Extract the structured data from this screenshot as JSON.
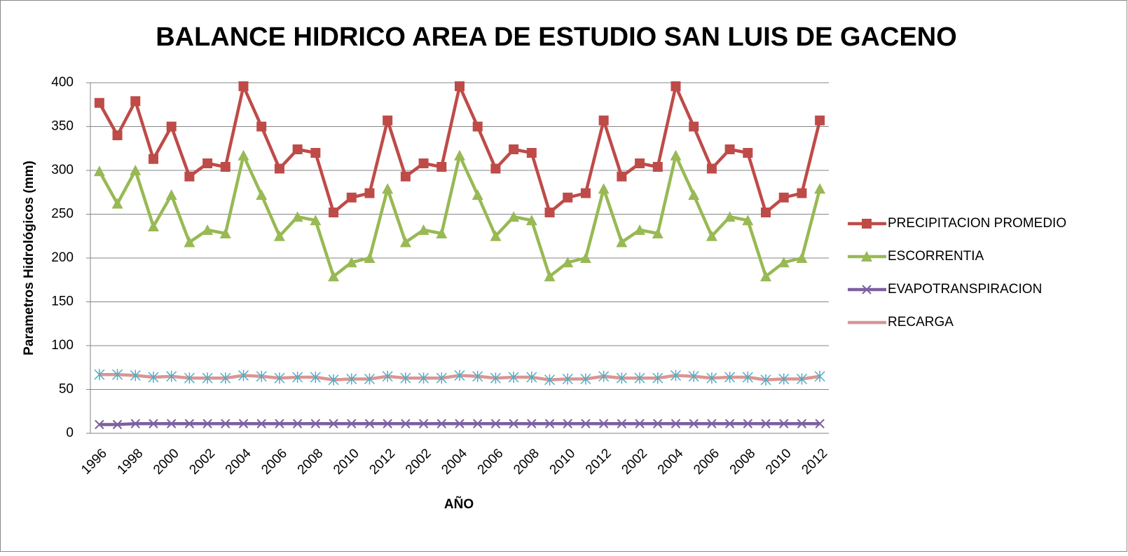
{
  "chart_data": {
    "type": "line",
    "title": "BALANCE HIDRICO AREA DE ESTUDIO SAN LUIS DE GACENO",
    "x_label": "AÑO",
    "y_label": "Parametros Hidrológicos (mm)",
    "categories": [
      "1996",
      null,
      "1998",
      null,
      "2000",
      null,
      "2002",
      null,
      "2004",
      null,
      "2006",
      null,
      "2008",
      null,
      "2010",
      null,
      "2012",
      null,
      "2002",
      null,
      "2004",
      null,
      "2006",
      null,
      "2008",
      null,
      "2010",
      null,
      "2012",
      null,
      "2002",
      null,
      "2004",
      null,
      "2006",
      null,
      "2008",
      null,
      "2010",
      null,
      "2012"
    ],
    "series": [
      {
        "name": "PRECIPITACION PROMEDIO",
        "color": "#be4b48",
        "marker": "square",
        "values": [
          377,
          340,
          379,
          313,
          350,
          293,
          308,
          304,
          396,
          350,
          302,
          324,
          320,
          252,
          269,
          274,
          357,
          293,
          308,
          304,
          396,
          350,
          302,
          324,
          320,
          252,
          269,
          274,
          357,
          293,
          308,
          304,
          396,
          350,
          302,
          324,
          320,
          252,
          269,
          274,
          357
        ]
      },
      {
        "name": "ESCORRENTIA",
        "color": "#98b954",
        "marker": "triangle",
        "values": [
          299,
          262,
          300,
          236,
          272,
          218,
          232,
          228,
          317,
          272,
          225,
          247,
          243,
          179,
          195,
          200,
          279,
          218,
          232,
          228,
          317,
          272,
          225,
          247,
          243,
          179,
          195,
          200,
          279,
          218,
          232,
          228,
          317,
          272,
          225,
          247,
          243,
          179,
          195,
          200,
          279
        ]
      },
      {
        "name": "EVAPOTRANSPIRACION",
        "color": "#7d60a0",
        "marker": "x",
        "values": [
          10,
          10,
          11,
          11,
          11,
          11,
          11,
          11,
          11,
          11,
          11,
          11,
          11,
          11,
          11,
          11,
          11,
          11,
          11,
          11,
          11,
          11,
          11,
          11,
          11,
          11,
          11,
          11,
          11,
          11,
          11,
          11,
          11,
          11,
          11,
          11,
          11,
          11,
          11,
          11,
          11
        ]
      },
      {
        "name": "RECARGA",
        "color": "#d99694",
        "marker": "star",
        "marker_color": "#4bacc6",
        "values": [
          67,
          67,
          66,
          64,
          65,
          63,
          63,
          63,
          66,
          65,
          63,
          64,
          64,
          61,
          62,
          62,
          65,
          63,
          63,
          63,
          66,
          65,
          63,
          64,
          64,
          61,
          62,
          62,
          65,
          63,
          63,
          63,
          66,
          65,
          63,
          64,
          64,
          61,
          62,
          62,
          65
        ]
      }
    ],
    "ylim": [
      0,
      400
    ],
    "yticks": [
      0,
      50,
      100,
      150,
      200,
      250,
      300,
      350,
      400
    ],
    "grid": true,
    "legend": "right"
  }
}
